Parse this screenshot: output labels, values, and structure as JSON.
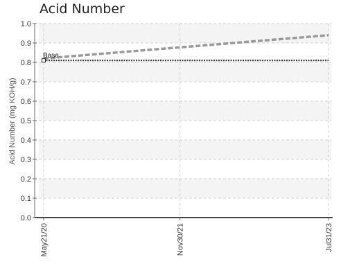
{
  "chart_data": {
    "type": "line",
    "title": "Acid Number",
    "ylabel": "Acid Number (mg KOH/g)",
    "xlabel": "",
    "ylim": [
      0,
      1.0
    ],
    "yticks": [
      "0.0",
      "0.1",
      "0.2",
      "0.3",
      "0.4",
      "0.5",
      "0.6",
      "0.7",
      "0.8",
      "0.9",
      "1.0"
    ],
    "x_dates": [
      "May21/20",
      "Nov30/21",
      "Jul31/23"
    ],
    "grid": true,
    "series": [
      {
        "style": "dotted",
        "color": "#333333",
        "x": [
          "May21/20",
          "Jul31/23"
        ],
        "y": [
          0.81,
          0.81
        ]
      },
      {
        "style": "dashed",
        "color": "#999999",
        "x": [
          "May21/20",
          "Jul31/23"
        ],
        "y": [
          0.82,
          0.94
        ]
      }
    ],
    "annotations": [
      {
        "text": "Base",
        "x": "May21/20",
        "y": 0.81
      }
    ]
  }
}
